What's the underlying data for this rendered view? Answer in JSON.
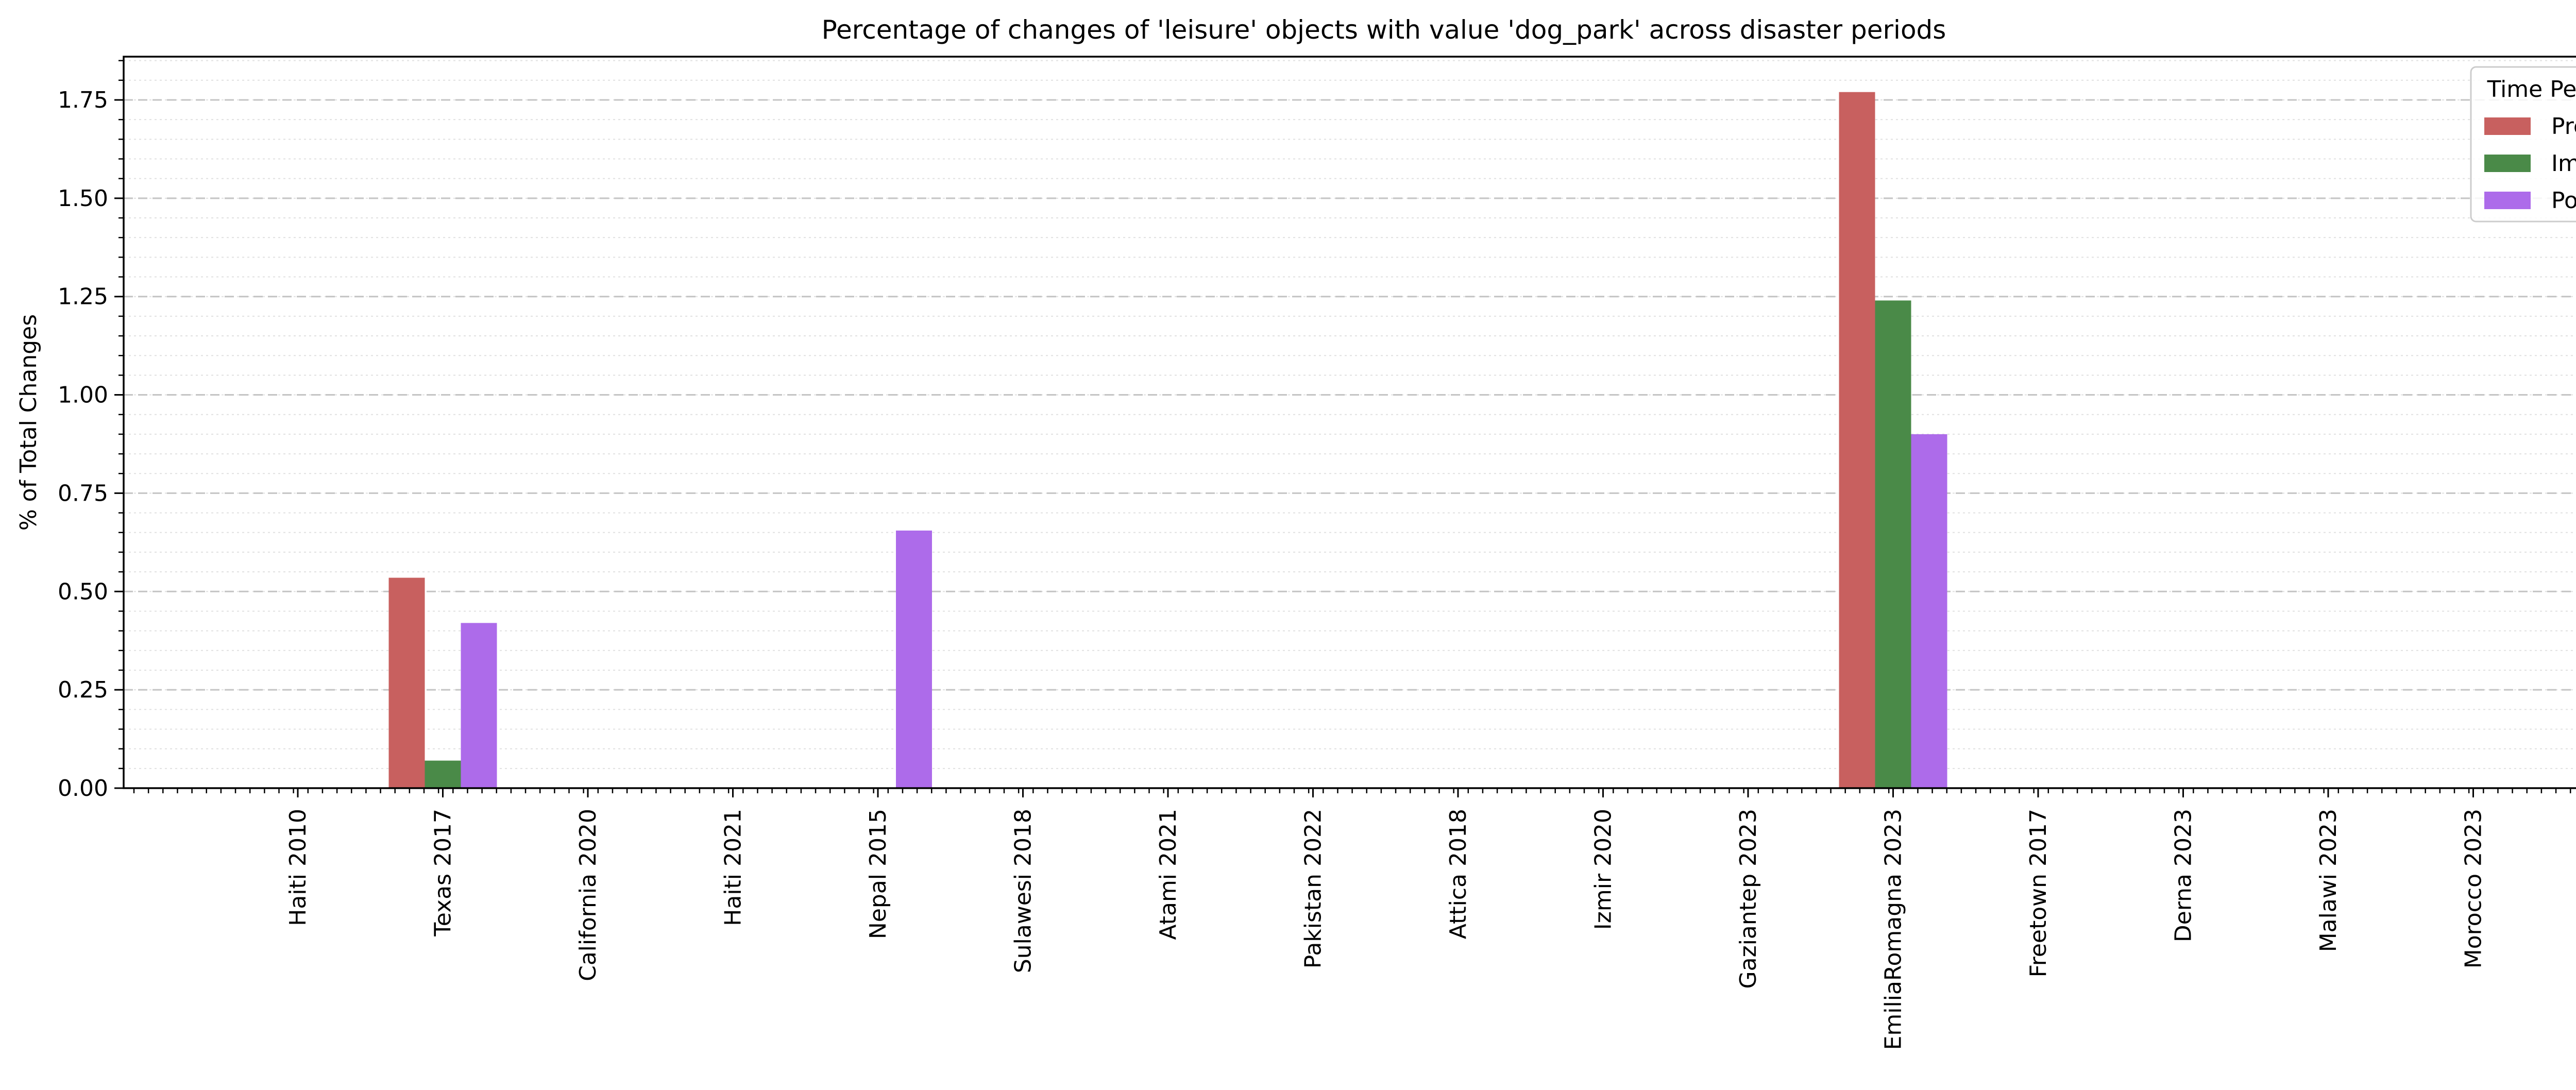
{
  "chart_data": {
    "type": "bar",
    "title": "Percentage of changes of 'leisure' objects with value 'dog_park' across disaster periods",
    "xlabel": "",
    "ylabel": "% of Total Changes",
    "ylim": [
      0,
      1.86
    ],
    "yticks": [
      0.0,
      0.25,
      0.5,
      0.75,
      1.0,
      1.25,
      1.5,
      1.75
    ],
    "ytick_labels": [
      "0.00",
      "0.25",
      "0.50",
      "0.75",
      "1.00",
      "1.25",
      "1.50",
      "1.75"
    ],
    "grid": true,
    "legend": {
      "title": "Time Period",
      "placement": "top-right"
    },
    "categories": [
      "Haiti 2010",
      "Texas 2017",
      "California 2020",
      "Haiti 2021",
      "Nepal 2015",
      "Sulawesi 2018",
      "Atami 2021",
      "Pakistan 2022",
      "Attica 2018",
      "Izmir 2020",
      "Gaziantep 2023",
      "EmiliaRomagna 2023",
      "Freetown 2017",
      "Derna 2023",
      "Malawi 2023",
      "Morocco 2023"
    ],
    "series": [
      {
        "name": "Pre",
        "color": "#c8605f",
        "values": [
          0,
          0.535,
          0,
          0,
          0,
          0,
          0,
          0,
          0,
          0,
          0,
          1.77,
          0,
          0,
          0,
          0
        ]
      },
      {
        "name": "Imm",
        "color": "#4a8a48",
        "values": [
          0,
          0.07,
          0,
          0,
          0,
          0,
          0,
          0,
          0,
          0,
          0,
          1.24,
          0,
          0,
          0,
          0
        ]
      },
      {
        "name": "Post",
        "color": "#ad6bea",
        "values": [
          0,
          0.42,
          0,
          0,
          0.655,
          0,
          0,
          0,
          0,
          0,
          0,
          0.9,
          0,
          0,
          0,
          0
        ]
      }
    ]
  }
}
